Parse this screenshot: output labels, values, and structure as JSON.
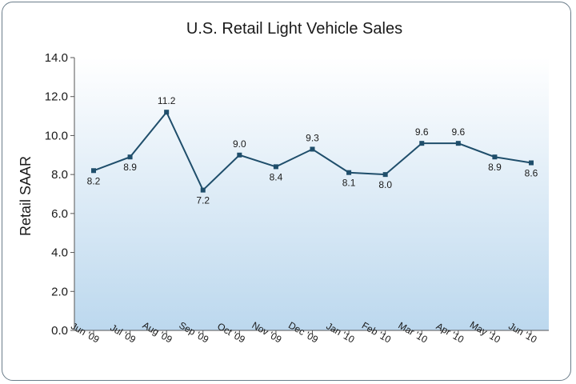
{
  "chart_data": {
    "type": "line",
    "title": "U.S. Retail Light Vehicle Sales",
    "xlabel": "",
    "ylabel": "Retail SAAR",
    "categories": [
      "Jun '09",
      "Jul '09",
      "Aug '09",
      "Sep '09",
      "Oct '09",
      "Nov '09",
      "Dec '09",
      "Jan '10",
      "Feb '10",
      "Mar '10",
      "Apr '10",
      "May '10",
      "Jun '10"
    ],
    "series": [
      {
        "values": [
          8.2,
          8.9,
          11.2,
          7.2,
          9.0,
          8.4,
          9.3,
          8.1,
          8.0,
          9.6,
          9.6,
          8.9,
          8.6
        ]
      }
    ],
    "data_labels": [
      "8.2",
      "8.9",
      "11.2",
      "7.2",
      "9.0",
      "8.4",
      "9.3",
      "8.1",
      "8.0",
      "9.6",
      "9.6",
      "8.9",
      "8.6"
    ],
    "label_position": [
      "below",
      "below",
      "above",
      "below",
      "above",
      "below",
      "above",
      "below",
      "below",
      "above",
      "above",
      "below",
      "below"
    ],
    "ylim": [
      0,
      14
    ],
    "yticks": [
      "0.0",
      "2.0",
      "4.0",
      "6.0",
      "8.0",
      "10.0",
      "12.0",
      "14.0"
    ],
    "grid": false,
    "colors": {
      "line": "#1f4e6b",
      "marker": "#1f4e6b",
      "plot_top": "#ffffff",
      "plot_bottom": "#bcd8ee",
      "axis": "#555555"
    }
  }
}
